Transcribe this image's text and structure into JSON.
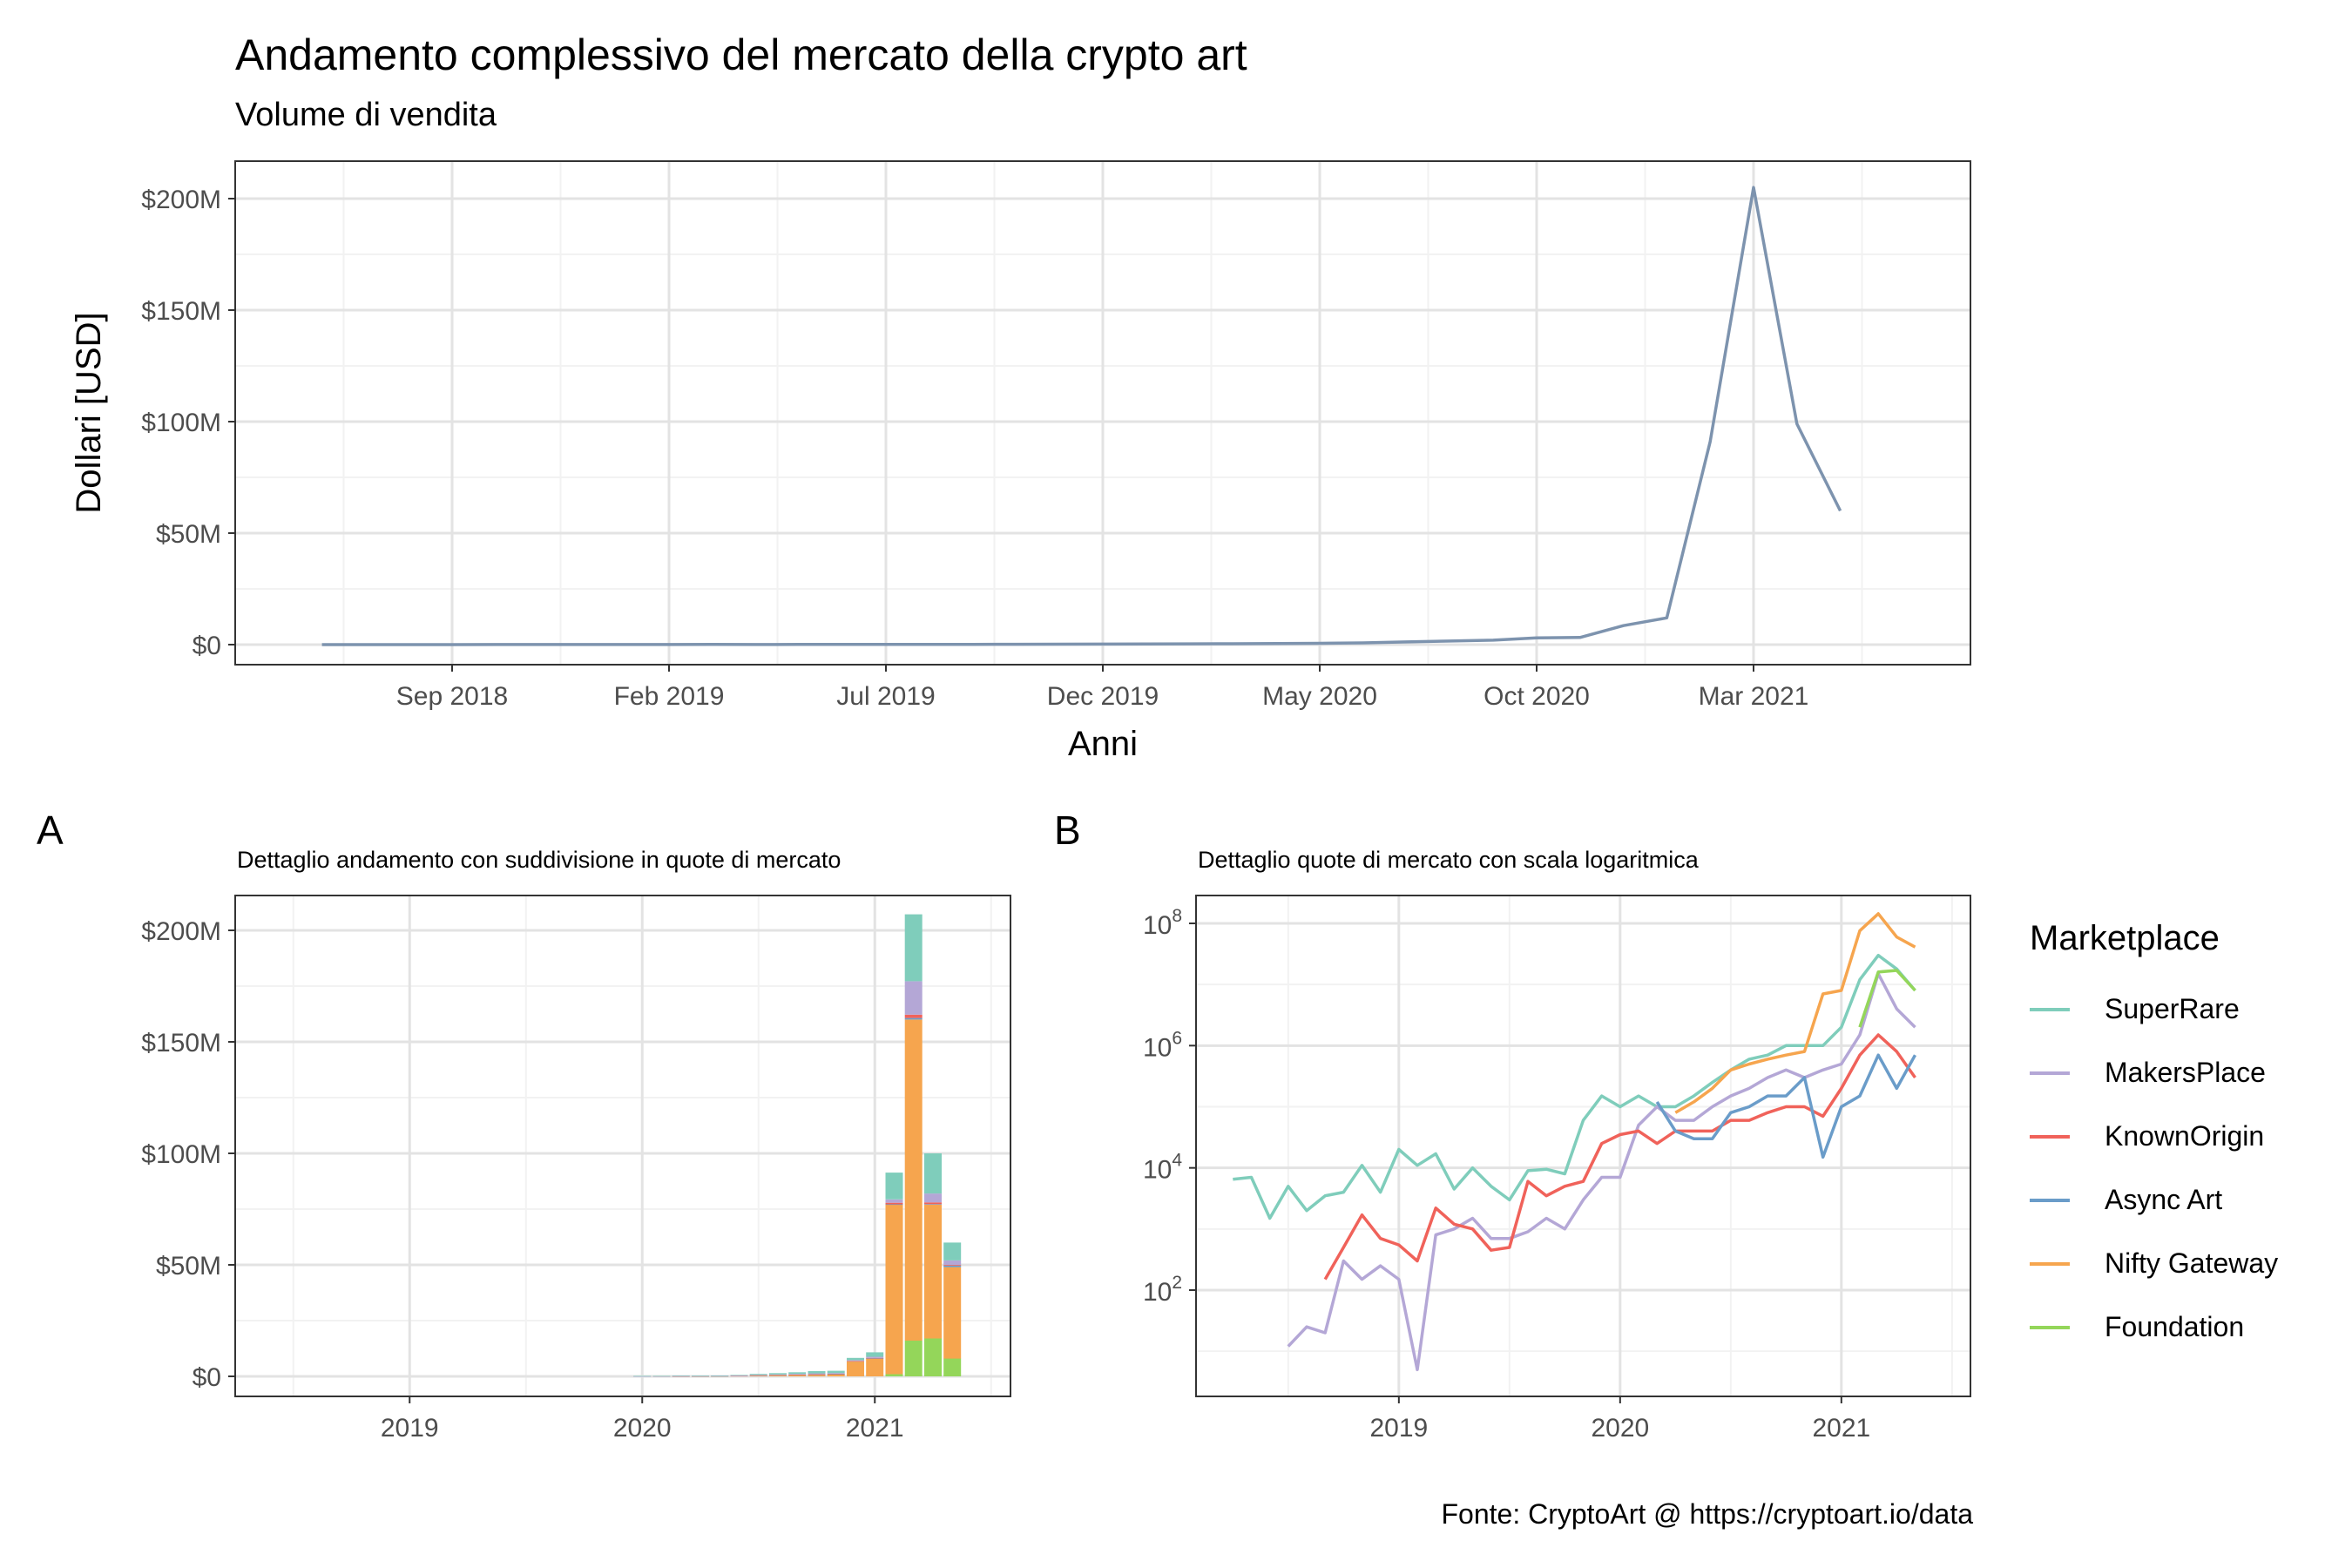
{
  "figure": {
    "title": "Andamento complessivo del mercato della crypto art",
    "subtitle": "Volume di vendita",
    "caption": "Fonte: CryptoArt @ https://cryptoart.io/data",
    "panel_a_tag": "A",
    "panel_b_tag": "B",
    "panel_a_subtitle": "Dettaglio andamento con suddivisione in quote di mercato",
    "panel_b_subtitle": "Dettaglio quote di mercato con scala logaritmica",
    "legend_title": "Marketplace"
  },
  "colors": {
    "SuperRare": "#7FCDBB",
    "MakersPlace": "#B4A7D6",
    "KnownOrigin": "#F0625A",
    "Async Art": "#6A9CC9",
    "Nifty Gateway": "#F6A54E",
    "Foundation": "#94D65A",
    "total": "#7D93AE"
  },
  "chart_data": [
    {
      "type": "line",
      "xlabel": "Anni",
      "ylabel": "Dollari [USD]",
      "x_tick_labels": [
        "Sep 2018",
        "Feb 2019",
        "Jul 2019",
        "Dec 2019",
        "May 2020",
        "Oct 2020",
        "Mar 2021"
      ],
      "y_tick_labels": [
        "$0",
        "$50M",
        "$100M",
        "$150M",
        "$200M"
      ],
      "ylim": [
        0,
        215000000
      ],
      "series": [
        {
          "x": [
            "2018-06",
            "2018-07",
            "2018-08",
            "2018-09",
            "2018-10",
            "2018-11",
            "2018-12",
            "2019-01",
            "2019-02",
            "2019-03",
            "2019-04",
            "2019-05",
            "2019-06",
            "2019-07",
            "2019-08",
            "2019-09",
            "2019-10",
            "2019-11",
            "2019-12",
            "2020-01",
            "2020-02",
            "2020-03",
            "2020-04",
            "2020-05",
            "2020-06",
            "2020-07",
            "2020-08",
            "2020-09",
            "2020-10",
            "2020-11",
            "2020-12",
            "2021-01",
            "2021-02",
            "2021-03",
            "2021-04",
            "2021-05"
          ],
          "values": [
            10000,
            12000,
            8000,
            15000,
            20000,
            25000,
            30000,
            40000,
            50000,
            60000,
            50000,
            60000,
            80000,
            100000,
            90000,
            120000,
            150000,
            200000,
            250000,
            300000,
            350000,
            400000,
            500000,
            600000,
            800000,
            1200000,
            1600000,
            2000000,
            3000000,
            3200000,
            8500000,
            12000000,
            91000000,
            205000000,
            99000000,
            60000000
          ]
        }
      ]
    },
    {
      "type": "bar",
      "stacked": true,
      "x_tick_labels": [
        "2019",
        "2020",
        "2021"
      ],
      "y_tick_labels": [
        "$0",
        "$50M",
        "$100M",
        "$150M",
        "$200M"
      ],
      "ylim": [
        0,
        215000000
      ],
      "categories": [
        "2020-01",
        "2020-02",
        "2020-03",
        "2020-04",
        "2020-05",
        "2020-06",
        "2020-07",
        "2020-08",
        "2020-09",
        "2020-10",
        "2020-11",
        "2020-12",
        "2021-01",
        "2021-02",
        "2021-03",
        "2021-04",
        "2021-05"
      ],
      "series": [
        {
          "name": "Foundation",
          "values": [
            0,
            0,
            0,
            0,
            0,
            0,
            0,
            0,
            0,
            0,
            0,
            0,
            0,
            1000000,
            16000000,
            17000000,
            8000000
          ]
        },
        {
          "name": "Nifty Gateway",
          "values": [
            0,
            0,
            0,
            80000,
            120000,
            200000,
            400000,
            500000,
            600000,
            700000,
            800000,
            6800000,
            8000000,
            76000000,
            144000000,
            60000000,
            41000000
          ]
        },
        {
          "name": "Async Art",
          "values": [
            0,
            0,
            100000,
            40000,
            30000,
            30000,
            80000,
            100000,
            150000,
            150000,
            300000,
            20000,
            100000,
            150000,
            700000,
            200000,
            700000
          ]
        },
        {
          "name": "KnownOrigin",
          "values": [
            20000,
            30000,
            20000,
            40000,
            40000,
            40000,
            60000,
            60000,
            80000,
            100000,
            100000,
            70000,
            200000,
            700000,
            1500000,
            800000,
            300000
          ]
        },
        {
          "name": "MakersPlace",
          "values": [
            7000,
            50000,
            100000,
            60000,
            60000,
            100000,
            150000,
            200000,
            300000,
            400000,
            300000,
            400000,
            500000,
            1500000,
            15000000,
            4000000,
            2000000
          ]
        },
        {
          "name": "SuperRare",
          "values": [
            150000,
            100000,
            120000,
            100000,
            150000,
            250000,
            400000,
            600000,
            700000,
            1000000,
            1000000,
            1000000,
            2000000,
            12000000,
            30000000,
            18000000,
            8000000
          ]
        }
      ]
    },
    {
      "type": "line",
      "yscale": "log",
      "x_tick_labels": [
        "2019",
        "2020",
        "2021"
      ],
      "y_tick_labels": [
        "10",
        "10",
        "10",
        "10"
      ],
      "y_tick_exponents": [
        "2",
        "4",
        "6",
        "8"
      ],
      "ylim": [
        1,
        300000000
      ],
      "series": [
        {
          "name": "SuperRare",
          "x": [
            "2018-04",
            "2018-05",
            "2018-06",
            "2018-07",
            "2018-08",
            "2018-09",
            "2018-10",
            "2018-11",
            "2018-12",
            "2019-01",
            "2019-02",
            "2019-03",
            "2019-04",
            "2019-05",
            "2019-06",
            "2019-07",
            "2019-08",
            "2019-09",
            "2019-10",
            "2019-11",
            "2019-12",
            "2020-01",
            "2020-02",
            "2020-03",
            "2020-04",
            "2020-05",
            "2020-06",
            "2020-07",
            "2020-08",
            "2020-09",
            "2020-10",
            "2020-11",
            "2020-12",
            "2021-01",
            "2021-02",
            "2021-03",
            "2021-04",
            "2021-05"
          ],
          "values": [
            6500,
            7000,
            1500,
            5000,
            2000,
            3500,
            4000,
            11000,
            4000,
            20000,
            11000,
            17000,
            4500,
            10000,
            5000,
            3000,
            9000,
            9500,
            8000,
            60000,
            150000,
            100000,
            150000,
            100000,
            100000,
            150000,
            250000,
            400000,
            600000,
            700000,
            1000000,
            1000000,
            1000000,
            2000000,
            12000000,
            30000000,
            18000000,
            8000000
          ]
        },
        {
          "name": "MakersPlace",
          "x": [
            "2018-07",
            "2018-08",
            "2018-09",
            "2018-10",
            "2018-11",
            "2018-12",
            "2019-01",
            "2019-02",
            "2019-03",
            "2019-04",
            "2019-05",
            "2019-06",
            "2019-07",
            "2019-08",
            "2019-09",
            "2019-10",
            "2019-11",
            "2019-12",
            "2020-01",
            "2020-02",
            "2020-03",
            "2020-04",
            "2020-05",
            "2020-06",
            "2020-07",
            "2020-08",
            "2020-09",
            "2020-10",
            "2020-11",
            "2020-12",
            "2021-01",
            "2021-02",
            "2021-03",
            "2021-04",
            "2021-05"
          ],
          "values": [
            12,
            25,
            20,
            300,
            150,
            250,
            150,
            5,
            800,
            1000,
            1500,
            700,
            700,
            900,
            1500,
            1000,
            3000,
            7000,
            7000,
            50000,
            100000,
            60000,
            60000,
            100000,
            150000,
            200000,
            300000,
            400000,
            300000,
            400000,
            500000,
            1500000,
            15000000,
            4000000,
            2000000
          ]
        },
        {
          "name": "KnownOrigin",
          "x": [
            "2018-09",
            "2018-10",
            "2018-11",
            "2018-12",
            "2019-01",
            "2019-02",
            "2019-03",
            "2019-04",
            "2019-05",
            "2019-06",
            "2019-07",
            "2019-08",
            "2019-09",
            "2019-10",
            "2019-11",
            "2019-12",
            "2020-01",
            "2020-02",
            "2020-03",
            "2020-04",
            "2020-05",
            "2020-06",
            "2020-07",
            "2020-08",
            "2020-09",
            "2020-10",
            "2020-11",
            "2020-12",
            "2021-01",
            "2021-02",
            "2021-03",
            "2021-04",
            "2021-05"
          ],
          "values": [
            150,
            500,
            1700,
            700,
            550,
            300,
            2200,
            1200,
            1000,
            450,
            500,
            6000,
            3500,
            5000,
            6000,
            25000,
            35000,
            40000,
            25000,
            40000,
            40000,
            40000,
            60000,
            60000,
            80000,
            100000,
            100000,
            70000,
            200000,
            700000,
            1500000,
            800000,
            300000
          ]
        },
        {
          "name": "Async Art",
          "x": [
            "2020-03",
            "2020-04",
            "2020-05",
            "2020-06",
            "2020-07",
            "2020-08",
            "2020-09",
            "2020-10",
            "2020-11",
            "2020-12",
            "2021-01",
            "2021-02",
            "2021-03",
            "2021-04",
            "2021-05"
          ],
          "values": [
            120000,
            40000,
            30000,
            30000,
            80000,
            100000,
            150000,
            150000,
            300000,
            15000,
            100000,
            150000,
            700000,
            200000,
            700000
          ]
        },
        {
          "name": "Nifty Gateway",
          "x": [
            "2020-04",
            "2020-05",
            "2020-06",
            "2020-07",
            "2020-08",
            "2020-09",
            "2020-10",
            "2020-11",
            "2020-12",
            "2021-01",
            "2021-02",
            "2021-03",
            "2021-04",
            "2021-05"
          ],
          "values": [
            80000,
            120000,
            200000,
            400000,
            500000,
            600000,
            700000,
            800000,
            7000000,
            8000000,
            76000000,
            144000000,
            60000000,
            41000000
          ]
        },
        {
          "name": "Foundation",
          "x": [
            "2021-02",
            "2021-03",
            "2021-04",
            "2021-05"
          ],
          "values": [
            2000000,
            16000000,
            17000000,
            8000000
          ]
        }
      ]
    }
  ]
}
